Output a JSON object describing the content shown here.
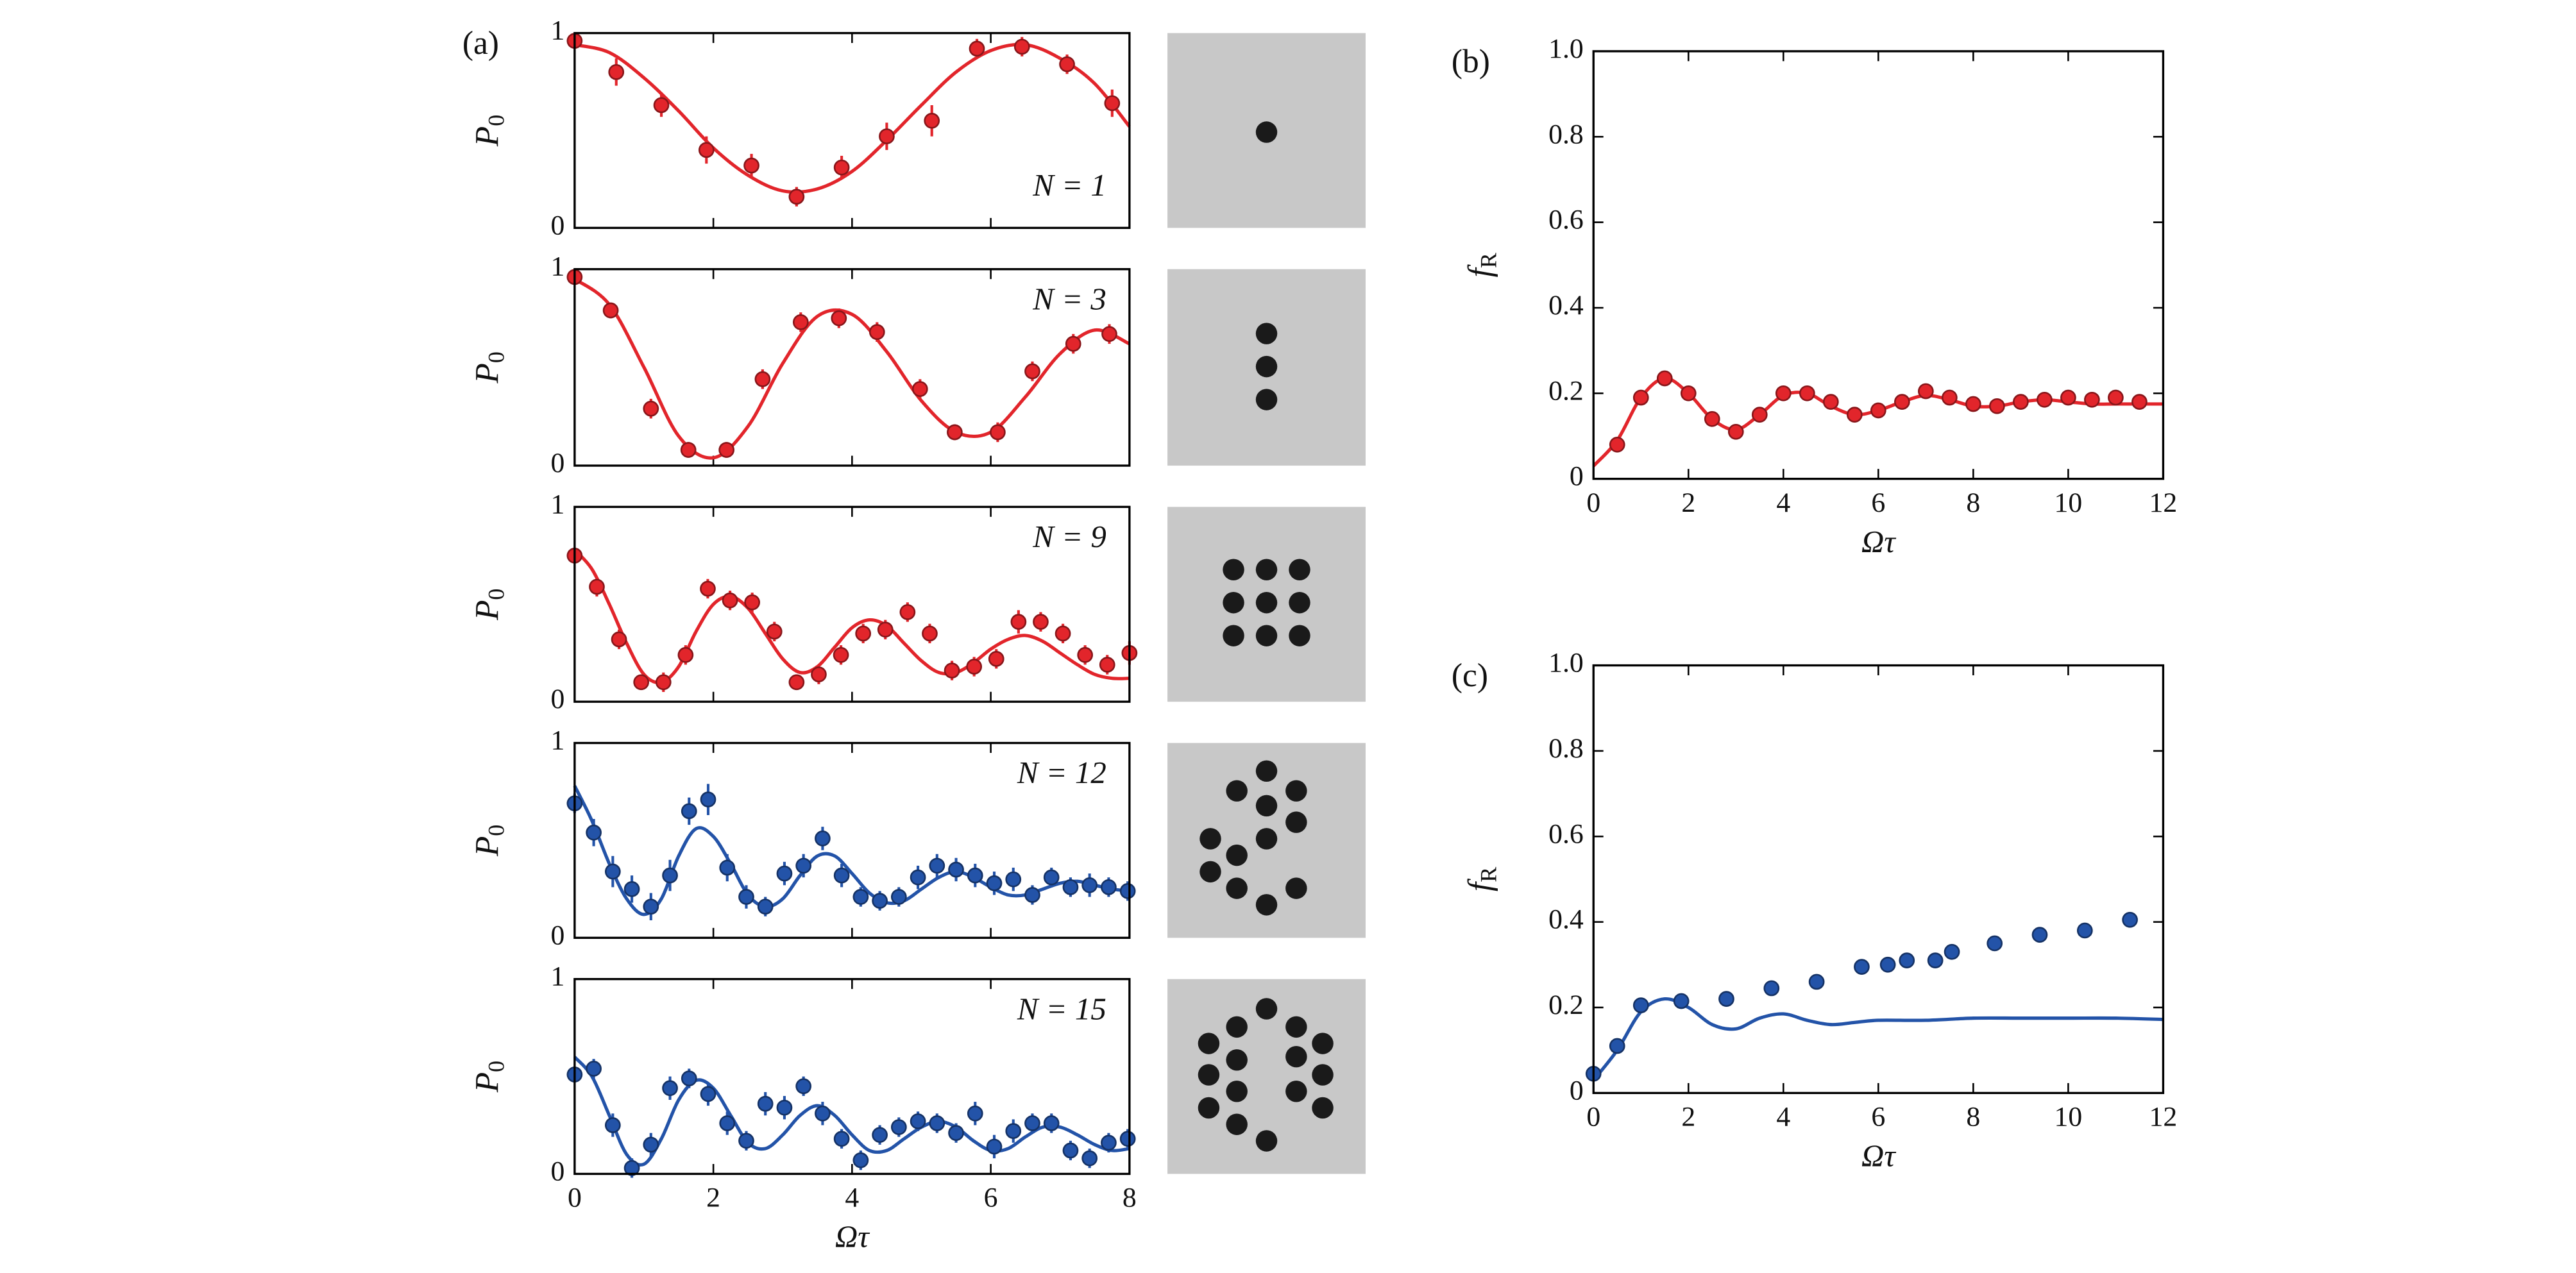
{
  "chart_data": [
    {
      "type": "scatter",
      "panel_label": "(a)",
      "annotation": "N = 1",
      "ylabel": {
        "symbol": "P",
        "subscript": "0"
      },
      "xlim": [
        0,
        8
      ],
      "ylim": [
        0,
        1
      ],
      "xticks": [
        0,
        2,
        4,
        6,
        8
      ],
      "yticks": [
        0,
        1
      ],
      "xtick_labels": false,
      "color": "#e2252b",
      "x": [
        0,
        0.6,
        1.25,
        1.9,
        2.55,
        3.2,
        3.85,
        4.5,
        5.15,
        5.8,
        6.45,
        7.1,
        7.75
      ],
      "values": [
        0.96,
        0.8,
        0.63,
        0.4,
        0.32,
        0.16,
        0.31,
        0.47,
        0.55,
        0.92,
        0.93,
        0.84,
        0.64
      ],
      "errors": [
        0.03,
        0.07,
        0.06,
        0.07,
        0.06,
        0.05,
        0.06,
        0.07,
        0.08,
        0.05,
        0.05,
        0.05,
        0.07
      ],
      "fit": {
        "x": [
          0,
          0.5,
          1,
          1.5,
          2,
          2.5,
          3,
          3.5,
          4,
          4.5,
          5,
          5.5,
          6,
          6.5,
          7,
          7.5,
          8
        ],
        "values": [
          0.94,
          0.9,
          0.77,
          0.6,
          0.41,
          0.27,
          0.19,
          0.2,
          0.29,
          0.45,
          0.63,
          0.8,
          0.91,
          0.94,
          0.87,
          0.74,
          0.52
        ]
      }
    },
    {
      "type": "scatter",
      "annotation": "N = 3",
      "ylabel": {
        "symbol": "P",
        "subscript": "0"
      },
      "xlim": [
        0,
        8
      ],
      "ylim": [
        0,
        1
      ],
      "xticks": [
        0,
        2,
        4,
        6,
        8
      ],
      "yticks": [
        0,
        1
      ],
      "xtick_labels": false,
      "color": "#e2252b",
      "x": [
        0,
        0.52,
        1.1,
        1.64,
        2.19,
        2.71,
        3.26,
        3.81,
        4.36,
        4.98,
        5.48,
        6.1,
        6.6,
        7.19,
        7.71
      ],
      "values": [
        0.96,
        0.79,
        0.29,
        0.08,
        0.08,
        0.44,
        0.73,
        0.75,
        0.68,
        0.39,
        0.17,
        0.17,
        0.48,
        0.62,
        0.67
      ],
      "errors": [
        0.03,
        0.04,
        0.05,
        0.04,
        0.04,
        0.05,
        0.05,
        0.05,
        0.05,
        0.05,
        0.04,
        0.05,
        0.05,
        0.05,
        0.05
      ],
      "fit": {
        "x": [
          0,
          0.5,
          1,
          1.5,
          2,
          2.5,
          3,
          3.5,
          4,
          4.5,
          5,
          5.5,
          6,
          6.5,
          7,
          7.5,
          8
        ],
        "values": [
          0.95,
          0.82,
          0.5,
          0.15,
          0.04,
          0.2,
          0.52,
          0.76,
          0.77,
          0.58,
          0.33,
          0.17,
          0.17,
          0.35,
          0.57,
          0.69,
          0.62
        ]
      }
    },
    {
      "type": "scatter",
      "annotation": "N = 9",
      "ylabel": {
        "symbol": "P",
        "subscript": "0"
      },
      "xlim": [
        0,
        8
      ],
      "ylim": [
        0,
        1
      ],
      "xticks": [
        0,
        2,
        4,
        6,
        8
      ],
      "yticks": [
        0,
        1
      ],
      "xtick_labels": false,
      "color": "#e2252b",
      "x": [
        0,
        0.32,
        0.64,
        0.96,
        1.28,
        1.6,
        1.92,
        2.24,
        2.56,
        2.88,
        3.2,
        3.52,
        3.84,
        4.16,
        4.48,
        4.8,
        5.12,
        5.44,
        5.76,
        6.08,
        6.4,
        6.72,
        7.04,
        7.36,
        7.68,
        8
      ],
      "values": [
        0.75,
        0.59,
        0.32,
        0.1,
        0.1,
        0.24,
        0.58,
        0.52,
        0.51,
        0.36,
        0.1,
        0.14,
        0.24,
        0.35,
        0.37,
        0.46,
        0.35,
        0.16,
        0.18,
        0.22,
        0.41,
        0.41,
        0.35,
        0.24,
        0.19,
        0.25
      ],
      "errors": [
        0.04,
        0.05,
        0.05,
        0.04,
        0.05,
        0.05,
        0.05,
        0.05,
        0.05,
        0.05,
        0.04,
        0.05,
        0.05,
        0.05,
        0.05,
        0.05,
        0.05,
        0.05,
        0.05,
        0.05,
        0.06,
        0.05,
        0.05,
        0.05,
        0.05,
        0.06
      ],
      "fit": {
        "x": [
          0,
          0.25,
          0.5,
          0.75,
          1,
          1.25,
          1.5,
          1.75,
          2,
          2.25,
          2.5,
          2.75,
          3,
          3.25,
          3.5,
          3.75,
          4,
          4.25,
          4.5,
          4.75,
          5,
          5.25,
          5.5,
          5.75,
          6,
          6.25,
          6.5,
          6.75,
          7,
          7.25,
          7.5,
          7.75,
          8
        ],
        "values": [
          0.78,
          0.68,
          0.5,
          0.3,
          0.14,
          0.1,
          0.18,
          0.36,
          0.5,
          0.54,
          0.48,
          0.35,
          0.22,
          0.15,
          0.18,
          0.28,
          0.38,
          0.42,
          0.39,
          0.3,
          0.21,
          0.15,
          0.15,
          0.2,
          0.27,
          0.32,
          0.34,
          0.31,
          0.25,
          0.19,
          0.14,
          0.12,
          0.12
        ]
      }
    },
    {
      "type": "scatter",
      "annotation": "N = 12",
      "ylabel": {
        "symbol": "P",
        "subscript": "0"
      },
      "xlim": [
        0,
        8
      ],
      "ylim": [
        0,
        1
      ],
      "xticks": [
        0,
        2,
        4,
        6,
        8
      ],
      "yticks": [
        0,
        1
      ],
      "xtick_labels": false,
      "color": "#2353a8",
      "x": [
        0,
        0.275,
        0.55,
        0.825,
        1.1,
        1.375,
        1.65,
        1.925,
        2.2,
        2.475,
        2.75,
        3.025,
        3.3,
        3.575,
        3.85,
        4.125,
        4.4,
        4.675,
        4.95,
        5.225,
        5.5,
        5.775,
        6.05,
        6.325,
        6.6,
        6.875,
        7.15,
        7.425,
        7.7,
        7.975
      ],
      "values": [
        0.69,
        0.54,
        0.34,
        0.25,
        0.16,
        0.32,
        0.65,
        0.71,
        0.36,
        0.21,
        0.16,
        0.33,
        0.37,
        0.51,
        0.32,
        0.21,
        0.19,
        0.21,
        0.31,
        0.37,
        0.35,
        0.32,
        0.28,
        0.3,
        0.22,
        0.31,
        0.26,
        0.27,
        0.26,
        0.24
      ],
      "errors": [
        0.05,
        0.07,
        0.08,
        0.07,
        0.07,
        0.08,
        0.07,
        0.08,
        0.07,
        0.06,
        0.05,
        0.06,
        0.06,
        0.06,
        0.06,
        0.05,
        0.05,
        0.05,
        0.06,
        0.06,
        0.06,
        0.06,
        0.06,
        0.06,
        0.05,
        0.05,
        0.05,
        0.06,
        0.05,
        0.05
      ],
      "fit": {
        "x": [
          0,
          0.25,
          0.5,
          0.75,
          1,
          1.25,
          1.5,
          1.75,
          2,
          2.25,
          2.5,
          2.75,
          3,
          3.25,
          3.5,
          3.75,
          4,
          4.25,
          4.5,
          4.75,
          5,
          5.25,
          5.5,
          5.75,
          6,
          6.25,
          6.5,
          6.75,
          7,
          7.25,
          7.5,
          7.75,
          8
        ],
        "values": [
          0.78,
          0.6,
          0.38,
          0.2,
          0.12,
          0.2,
          0.42,
          0.56,
          0.52,
          0.38,
          0.22,
          0.16,
          0.2,
          0.32,
          0.42,
          0.42,
          0.33,
          0.23,
          0.18,
          0.19,
          0.25,
          0.31,
          0.34,
          0.31,
          0.26,
          0.22,
          0.22,
          0.25,
          0.28,
          0.29,
          0.27,
          0.25,
          0.24
        ]
      }
    },
    {
      "type": "scatter",
      "annotation": "N = 15",
      "ylabel": {
        "symbol": "P",
        "subscript": "0"
      },
      "xlabel": "Ωτ",
      "xlim": [
        0,
        8
      ],
      "ylim": [
        0,
        1
      ],
      "xticks": [
        0,
        2,
        4,
        6,
        8
      ],
      "yticks": [
        0,
        1
      ],
      "xtick_labels": true,
      "color": "#2353a8",
      "x": [
        0,
        0.275,
        0.55,
        0.825,
        1.1,
        1.375,
        1.65,
        1.925,
        2.2,
        2.475,
        2.75,
        3.025,
        3.3,
        3.575,
        3.85,
        4.125,
        4.4,
        4.675,
        4.95,
        5.225,
        5.5,
        5.775,
        6.05,
        6.325,
        6.6,
        6.875,
        7.15,
        7.425,
        7.7,
        7.975
      ],
      "values": [
        0.51,
        0.54,
        0.25,
        0.03,
        0.15,
        0.44,
        0.49,
        0.41,
        0.26,
        0.17,
        0.36,
        0.34,
        0.45,
        0.31,
        0.18,
        0.07,
        0.2,
        0.24,
        0.27,
        0.26,
        0.21,
        0.31,
        0.14,
        0.22,
        0.26,
        0.26,
        0.12,
        0.08,
        0.16,
        0.18
      ],
      "errors": [
        0.04,
        0.05,
        0.06,
        0.05,
        0.06,
        0.06,
        0.05,
        0.06,
        0.06,
        0.05,
        0.06,
        0.06,
        0.05,
        0.06,
        0.05,
        0.05,
        0.05,
        0.05,
        0.05,
        0.05,
        0.05,
        0.06,
        0.06,
        0.06,
        0.05,
        0.05,
        0.05,
        0.05,
        0.05,
        0.05
      ],
      "fit": {
        "x": [
          0,
          0.25,
          0.5,
          0.75,
          1,
          1.25,
          1.5,
          1.75,
          2,
          2.25,
          2.5,
          2.75,
          3,
          3.25,
          3.5,
          3.75,
          4,
          4.25,
          4.5,
          4.75,
          5,
          5.25,
          5.5,
          5.75,
          6,
          6.25,
          6.5,
          6.75,
          7,
          7.25,
          7.5,
          7.75,
          8
        ],
        "values": [
          0.6,
          0.5,
          0.3,
          0.1,
          0.05,
          0.18,
          0.38,
          0.48,
          0.44,
          0.3,
          0.16,
          0.13,
          0.2,
          0.3,
          0.35,
          0.3,
          0.2,
          0.12,
          0.12,
          0.18,
          0.24,
          0.27,
          0.24,
          0.17,
          0.12,
          0.13,
          0.19,
          0.24,
          0.24,
          0.2,
          0.15,
          0.12,
          0.13
        ]
      }
    },
    {
      "type": "scatter",
      "panel_label": "(b)",
      "ylabel": {
        "symbol": "f",
        "subscript": "R"
      },
      "xlabel": "Ωτ",
      "xlim": [
        0,
        12
      ],
      "ylim": [
        0,
        1
      ],
      "xticks": [
        0,
        2,
        4,
        6,
        8,
        10,
        12
      ],
      "yticks": [
        0,
        0.2,
        0.4,
        0.6,
        0.8,
        {
          "value": 1,
          "label": "1.0"
        }
      ],
      "xtick_labels": true,
      "color": "#e2252b",
      "x": [
        0.5,
        1,
        1.5,
        2,
        2.5,
        3,
        3.5,
        4,
        4.5,
        5,
        5.5,
        6,
        6.5,
        7,
        7.5,
        8,
        8.5,
        9,
        9.5,
        10,
        10.5,
        11,
        11.5
      ],
      "values": [
        0.08,
        0.19,
        0.235,
        0.2,
        0.14,
        0.11,
        0.15,
        0.2,
        0.2,
        0.18,
        0.15,
        0.16,
        0.18,
        0.205,
        0.19,
        0.175,
        0.17,
        0.18,
        0.185,
        0.19,
        0.185,
        0.19,
        0.18
      ],
      "fit": {
        "x": [
          0,
          0.5,
          1,
          1.5,
          2,
          2.5,
          3,
          3.5,
          4,
          4.5,
          5,
          5.5,
          6,
          6.5,
          7,
          7.5,
          8,
          8.5,
          9,
          9.5,
          10,
          10.5,
          11,
          11.5,
          12
        ],
        "values": [
          0.03,
          0.09,
          0.19,
          0.235,
          0.2,
          0.14,
          0.115,
          0.15,
          0.195,
          0.2,
          0.17,
          0.15,
          0.16,
          0.18,
          0.195,
          0.185,
          0.17,
          0.17,
          0.18,
          0.185,
          0.18,
          0.175,
          0.175,
          0.175,
          0.175
        ]
      }
    },
    {
      "type": "scatter",
      "panel_label": "(c)",
      "ylabel": {
        "symbol": "f",
        "subscript": "R"
      },
      "xlabel": "Ωτ",
      "xlim": [
        0,
        12
      ],
      "ylim": [
        0,
        1
      ],
      "xticks": [
        0,
        2,
        4,
        6,
        8,
        10,
        12
      ],
      "yticks": [
        0,
        0.2,
        0.4,
        0.6,
        0.8,
        {
          "value": 1,
          "label": "1.0"
        }
      ],
      "xtick_labels": true,
      "color": "#2353a8",
      "x": [
        0,
        0.5,
        1,
        1.85,
        2.8,
        3.75,
        4.7,
        5.65,
        6.2,
        6.6,
        7.2,
        7.55,
        8.45,
        9.4,
        10.35,
        11.3
      ],
      "values": [
        0.045,
        0.11,
        0.205,
        0.215,
        0.22,
        0.245,
        0.26,
        0.295,
        0.3,
        0.31,
        0.31,
        0.33,
        0.35,
        0.37,
        0.38,
        0.405
      ],
      "fit": {
        "x": [
          0,
          0.5,
          1,
          1.5,
          2,
          2.5,
          3,
          3.5,
          4,
          4.5,
          5,
          5.5,
          6,
          7,
          8,
          9,
          10,
          11,
          12
        ],
        "values": [
          0.03,
          0.1,
          0.19,
          0.22,
          0.2,
          0.16,
          0.15,
          0.175,
          0.185,
          0.17,
          0.16,
          0.165,
          0.17,
          0.17,
          0.175,
          0.175,
          0.175,
          0.175,
          0.172
        ]
      }
    }
  ]
}
